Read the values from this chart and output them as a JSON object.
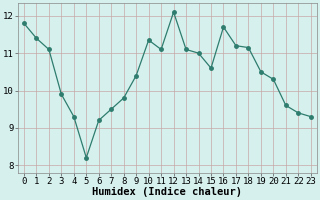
{
  "xlabel": "Humidex (Indice chaleur)",
  "x": [
    0,
    1,
    2,
    3,
    4,
    5,
    6,
    7,
    8,
    9,
    10,
    11,
    12,
    13,
    14,
    15,
    16,
    17,
    18,
    19,
    20,
    21,
    22,
    23
  ],
  "y": [
    11.8,
    11.4,
    11.1,
    9.9,
    9.3,
    8.2,
    9.2,
    9.5,
    9.8,
    10.4,
    11.35,
    11.1,
    12.1,
    11.1,
    11.0,
    10.6,
    11.7,
    11.2,
    11.15,
    10.5,
    10.3,
    9.6,
    9.4,
    9.3
  ],
  "line_color": "#2e7d6e",
  "marker": "o",
  "marker_size": 2.5,
  "bg_color": "#d6f0ee",
  "grid_color_h": "#c8a8a8",
  "grid_color_v": "#c8a8a8",
  "axes_bg": "#d6f0ee",
  "xlim": [
    -0.5,
    23.5
  ],
  "ylim": [
    7.8,
    12.35
  ],
  "yticks": [
    8,
    9,
    10,
    11,
    12
  ],
  "xticks": [
    0,
    1,
    2,
    3,
    4,
    5,
    6,
    7,
    8,
    9,
    10,
    11,
    12,
    13,
    14,
    15,
    16,
    17,
    18,
    19,
    20,
    21,
    22,
    23
  ],
  "xlabel_fontsize": 7.5,
  "tick_fontsize": 6.5
}
